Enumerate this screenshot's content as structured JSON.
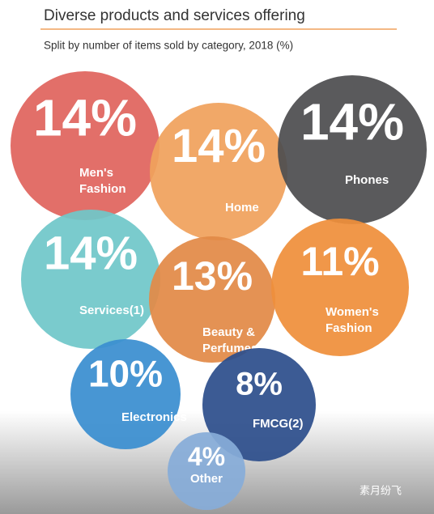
{
  "chart_data": {
    "type": "bubble",
    "title": "Diverse products and services offering",
    "subtitle": "Split by number of items sold by category, 2018 (%)",
    "categories": [
      "Men's Fashion",
      "Home",
      "Phones",
      "Services(1)",
      "Beauty & Perfumes",
      "Women's Fashion",
      "Electronics",
      "FMCG(2)",
      "Other"
    ],
    "values": [
      14,
      14,
      14,
      14,
      13,
      11,
      10,
      8,
      4
    ],
    "value_labels": [
      "14%",
      "14%",
      "14%",
      "14%",
      "13%",
      "11%",
      "10%",
      "8%",
      "4%"
    ],
    "colors": [
      "#e0645e",
      "#f0a15c",
      "#4e4e50",
      "#70c7c9",
      "#e28a47",
      "#ef8f3b",
      "#3a8ed0",
      "#2d4f8c",
      "#86acd8"
    ],
    "watermark": "素月纷飞"
  }
}
